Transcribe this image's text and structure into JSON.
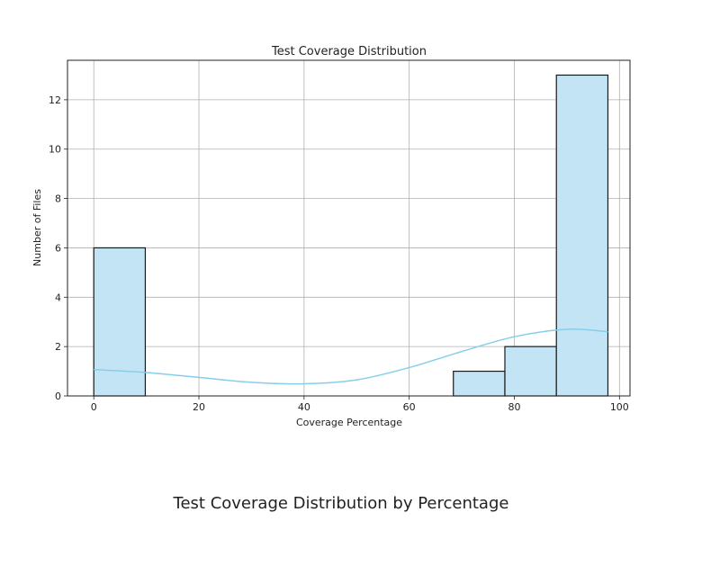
{
  "chart_data": {
    "type": "bar",
    "subtype": "histogram-with-kde",
    "title": "Test Coverage Distribution",
    "xlabel": "Coverage Percentage",
    "ylabel": "Number of Files",
    "xlim": [
      -5,
      102
    ],
    "ylim": [
      0,
      13.6
    ],
    "x_ticks": [
      0,
      20,
      40,
      60,
      80,
      100
    ],
    "y_ticks": [
      0,
      2,
      4,
      6,
      8,
      10,
      12
    ],
    "grid": true,
    "bins": [
      {
        "start": 0,
        "end": 9.8,
        "count": 6
      },
      {
        "start": 68.4,
        "end": 78.2,
        "count": 1
      },
      {
        "start": 78.2,
        "end": 88,
        "count": 2
      },
      {
        "start": 88,
        "end": 97.8,
        "count": 13
      }
    ],
    "kde": {
      "x": [
        0,
        10,
        20,
        30,
        40,
        50,
        60,
        70,
        80,
        90,
        97.8
      ],
      "y": [
        1.07,
        0.95,
        0.75,
        0.55,
        0.49,
        0.65,
        1.15,
        1.8,
        2.4,
        2.7,
        2.6
      ]
    },
    "colors": {
      "bar_fill": "#c2e4f4",
      "bar_edge": "#1a1a1a",
      "kde_line": "#87ceeb",
      "grid": "#b0b0b0"
    }
  },
  "caption": "Test Coverage Distribution by Percentage"
}
